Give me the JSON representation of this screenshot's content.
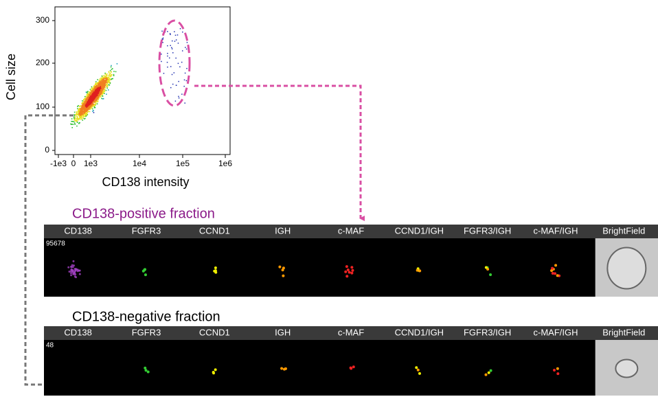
{
  "plot": {
    "y_label": "Cell size",
    "x_label": "CD138 intensity",
    "yticks": [
      "0",
      "100",
      "200",
      "300"
    ],
    "xticks": [
      "-1e3",
      "0",
      "1e3",
      "1e4",
      "1e5",
      "1e6"
    ]
  },
  "panels": [
    {
      "title": "CD138-positive fraction",
      "object_id": "95678",
      "channels": [
        "CD138",
        "FGFR3",
        "CCND1",
        "IGH",
        "c-MAF",
        "CCND1/IGH",
        "FGFR3/IGH",
        "c-MAF/IGH",
        "BrightField"
      ]
    },
    {
      "title": "CD138-negative fraction",
      "object_id": "48",
      "channels": [
        "CD138",
        "FGFR3",
        "CCND1",
        "IGH",
        "c-MAF",
        "CCND1/IGH",
        "FGFR3/IGH",
        "c-MAF/IGH",
        "BrightField"
      ]
    }
  ]
}
